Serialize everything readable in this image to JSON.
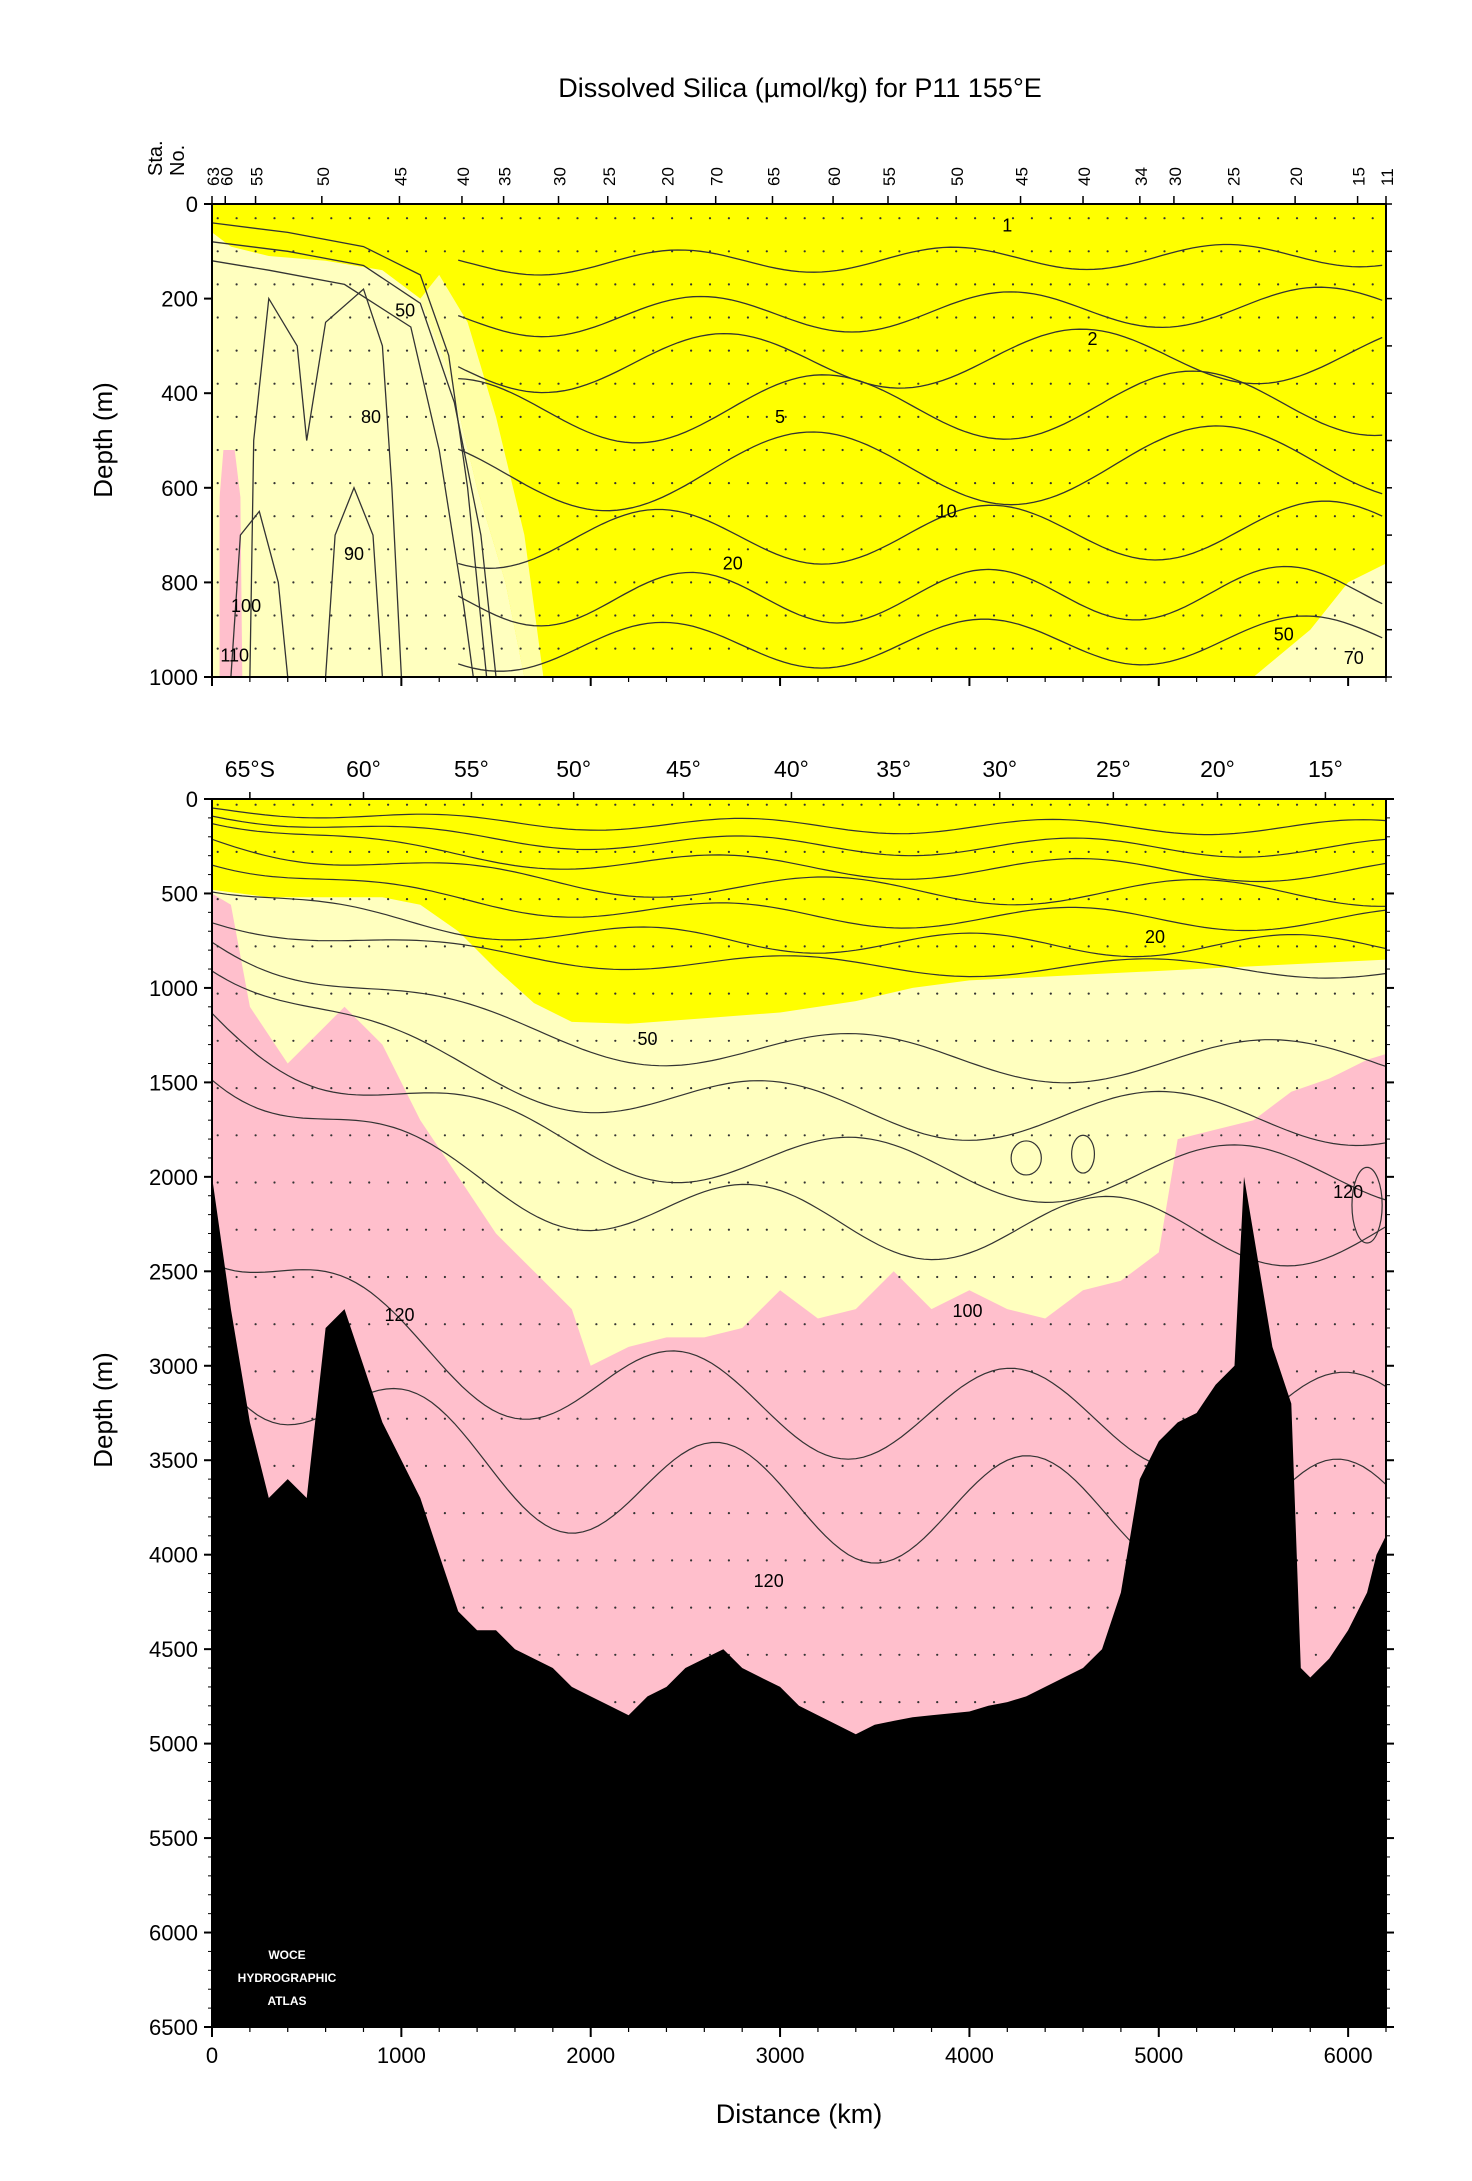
{
  "title": "Dissolved Silica (µmol/kg) for P11 155°E",
  "colors": {
    "yellow": "#ffff00",
    "light_yellow": "#ffffbf",
    "cream": "#ffffa6",
    "pink": "#ffbfcc",
    "bottom": "#000000",
    "contour": "#333333"
  },
  "chart_data": [
    {
      "type": "heatmap",
      "panel": "upper",
      "station_axis_label": "Sta.\nNo.",
      "station_labels": [
        "63",
        "60",
        "55",
        "50",
        "45",
        "40",
        "35",
        "30",
        "25",
        "20",
        "70",
        "65",
        "60",
        "55",
        "50",
        "45",
        "40",
        "34",
        "30",
        "25",
        "20",
        "15",
        "11"
      ],
      "station_km": [
        0,
        70,
        230,
        580,
        990,
        1320,
        1540,
        1830,
        2090,
        2400,
        2660,
        2960,
        3280,
        3570,
        3930,
        4270,
        4600,
        4900,
        5080,
        5390,
        5720,
        6050,
        6200
      ],
      "ylabel": "Depth (m)",
      "ylim": [
        1000,
        0
      ],
      "yticks": [
        0,
        200,
        400,
        600,
        800,
        1000
      ],
      "xlim": [
        0,
        6200
      ],
      "contour_labels": [
        {
          "text": "1",
          "km": 4200,
          "depth": 45
        },
        {
          "text": "2",
          "km": 4650,
          "depth": 285
        },
        {
          "text": "5",
          "km": 3000,
          "depth": 450
        },
        {
          "text": "10",
          "km": 3880,
          "depth": 650
        },
        {
          "text": "20",
          "km": 2750,
          "depth": 760
        },
        {
          "text": "50",
          "km": 1020,
          "depth": 225
        },
        {
          "text": "50",
          "km": 5660,
          "depth": 910
        },
        {
          "text": "70",
          "km": 6030,
          "depth": 960
        },
        {
          "text": "80",
          "km": 840,
          "depth": 450
        },
        {
          "text": "90",
          "km": 750,
          "depth": 740
        },
        {
          "text": "100",
          "km": 180,
          "depth": 850
        },
        {
          "text": "110",
          "km": 120,
          "depth": 955
        }
      ]
    },
    {
      "type": "heatmap",
      "panel": "lower",
      "lat_labels": [
        "65°S",
        "60°",
        "55°",
        "50°",
        "45°",
        "40°",
        "35°",
        "30°",
        "25°",
        "20°",
        "15°"
      ],
      "lat_km": [
        200,
        800,
        1370,
        1910,
        2490,
        3060,
        3600,
        4160,
        4760,
        5310,
        5880
      ],
      "xlabel": "Distance (km)",
      "ylabel": "Depth (m)",
      "xlim": [
        0,
        6200
      ],
      "ylim": [
        6500,
        0
      ],
      "xticks": [
        0,
        1000,
        2000,
        3000,
        4000,
        5000,
        6000
      ],
      "yticks": [
        0,
        500,
        1000,
        1500,
        2000,
        2500,
        3000,
        3500,
        4000,
        4500,
        5000,
        5500,
        6000,
        6500
      ],
      "contour_labels": [
        {
          "text": "20",
          "km": 4980,
          "depth": 730
        },
        {
          "text": "50",
          "km": 2300,
          "depth": 1270
        },
        {
          "text": "100",
          "km": 3990,
          "depth": 2710
        },
        {
          "text": "120",
          "km": 990,
          "depth": 2730
        },
        {
          "text": "120",
          "km": 2940,
          "depth": 4140
        },
        {
          "text": "120",
          "km": 6000,
          "depth": 2080
        }
      ],
      "logo_lines": [
        "WOCE",
        "HYDROGRAPHIC",
        "ATLAS"
      ],
      "boundary_50_depth": [
        [
          0,
          480
        ],
        [
          300,
          520
        ],
        [
          600,
          520
        ],
        [
          900,
          520
        ],
        [
          1100,
          560
        ],
        [
          1300,
          700
        ],
        [
          1500,
          900
        ],
        [
          1700,
          1080
        ],
        [
          1900,
          1180
        ],
        [
          2200,
          1190
        ],
        [
          2600,
          1160
        ],
        [
          3000,
          1130
        ],
        [
          3400,
          1070
        ],
        [
          3700,
          1000
        ],
        [
          4000,
          960
        ],
        [
          4400,
          940
        ],
        [
          4800,
          920
        ],
        [
          5200,
          900
        ],
        [
          5600,
          880
        ],
        [
          6000,
          860
        ],
        [
          6200,
          850
        ]
      ],
      "boundary_110_depth": [
        [
          0,
          500
        ],
        [
          100,
          560
        ],
        [
          200,
          1100
        ],
        [
          400,
          1400
        ],
        [
          600,
          1200
        ],
        [
          700,
          1100
        ],
        [
          900,
          1300
        ],
        [
          1100,
          1700
        ],
        [
          1300,
          2000
        ],
        [
          1500,
          2300
        ],
        [
          1700,
          2500
        ],
        [
          1900,
          2700
        ],
        [
          2000,
          3000
        ],
        [
          2200,
          2900
        ],
        [
          2400,
          2850
        ],
        [
          2600,
          2850
        ],
        [
          2800,
          2800
        ],
        [
          3000,
          2600
        ],
        [
          3200,
          2750
        ],
        [
          3400,
          2700
        ],
        [
          3600,
          2500
        ],
        [
          3800,
          2700
        ],
        [
          4000,
          2600
        ],
        [
          4200,
          2700
        ],
        [
          4400,
          2750
        ],
        [
          4600,
          2600
        ],
        [
          4800,
          2550
        ],
        [
          5000,
          2400
        ],
        [
          5100,
          1800
        ],
        [
          5300,
          1750
        ],
        [
          5500,
          1700
        ],
        [
          5700,
          1550
        ],
        [
          5900,
          1480
        ],
        [
          6100,
          1380
        ],
        [
          6200,
          1350
        ]
      ],
      "bottom_depth": [
        [
          0,
          2000
        ],
        [
          100,
          2700
        ],
        [
          200,
          3300
        ],
        [
          300,
          3700
        ],
        [
          400,
          3600
        ],
        [
          500,
          3700
        ],
        [
          600,
          2800
        ],
        [
          700,
          2700
        ],
        [
          800,
          3000
        ],
        [
          900,
          3300
        ],
        [
          1000,
          3500
        ],
        [
          1100,
          3700
        ],
        [
          1200,
          4000
        ],
        [
          1300,
          4300
        ],
        [
          1400,
          4400
        ],
        [
          1500,
          4400
        ],
        [
          1600,
          4500
        ],
        [
          1700,
          4550
        ],
        [
          1800,
          4600
        ],
        [
          1900,
          4700
        ],
        [
          2000,
          4750
        ],
        [
          2100,
          4800
        ],
        [
          2200,
          4850
        ],
        [
          2300,
          4750
        ],
        [
          2400,
          4700
        ],
        [
          2500,
          4600
        ],
        [
          2600,
          4550
        ],
        [
          2700,
          4500
        ],
        [
          2800,
          4600
        ],
        [
          2900,
          4650
        ],
        [
          3000,
          4700
        ],
        [
          3100,
          4800
        ],
        [
          3200,
          4850
        ],
        [
          3300,
          4900
        ],
        [
          3400,
          4950
        ],
        [
          3500,
          4900
        ],
        [
          3600,
          4880
        ],
        [
          3700,
          4860
        ],
        [
          3800,
          4850
        ],
        [
          3900,
          4840
        ],
        [
          4000,
          4830
        ],
        [
          4100,
          4800
        ],
        [
          4200,
          4780
        ],
        [
          4300,
          4750
        ],
        [
          4400,
          4700
        ],
        [
          4600,
          4600
        ],
        [
          4700,
          4500
        ],
        [
          4800,
          4200
        ],
        [
          4900,
          3600
        ],
        [
          5000,
          3400
        ],
        [
          5100,
          3300
        ],
        [
          5200,
          3250
        ],
        [
          5300,
          3100
        ],
        [
          5400,
          3000
        ],
        [
          5450,
          2000
        ],
        [
          5500,
          2300
        ],
        [
          5600,
          2900
        ],
        [
          5700,
          3200
        ],
        [
          5750,
          4600
        ],
        [
          5800,
          4650
        ],
        [
          5900,
          4550
        ],
        [
          6000,
          4400
        ],
        [
          6100,
          4200
        ],
        [
          6150,
          4000
        ],
        [
          6200,
          3900
        ]
      ]
    }
  ]
}
